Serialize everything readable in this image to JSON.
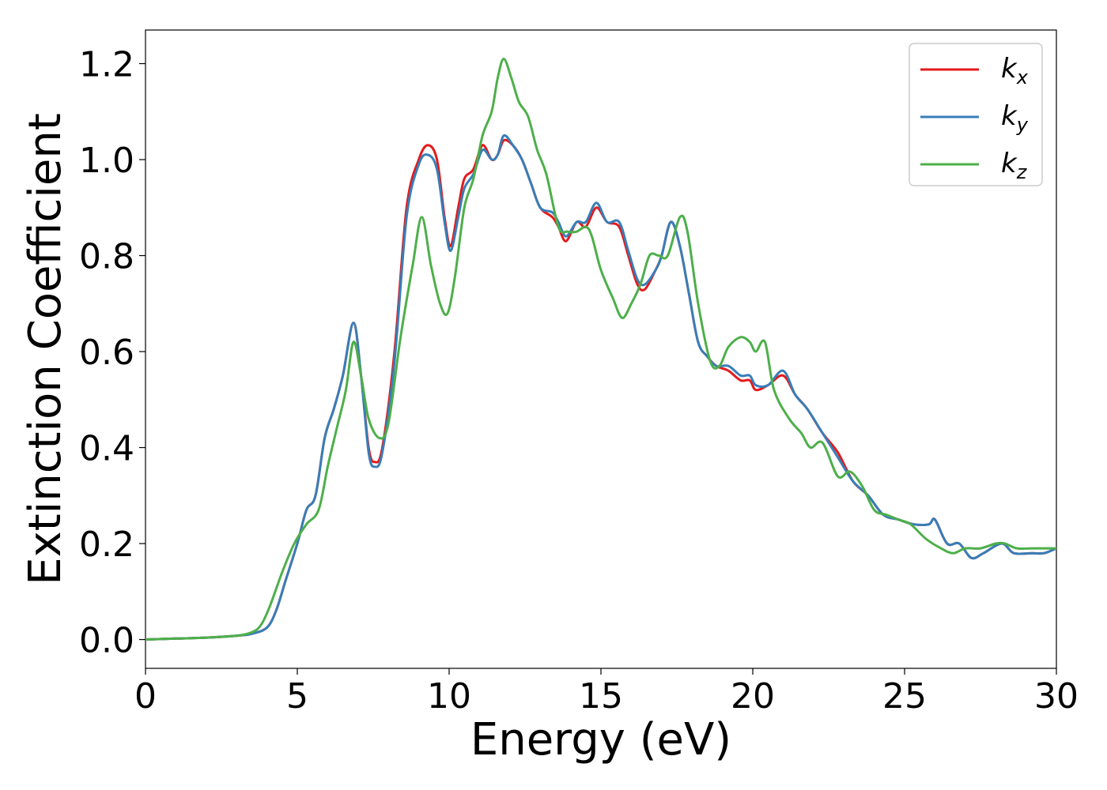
{
  "chart_data": {
    "type": "line",
    "title": "",
    "xlabel": "Energy (eV)",
    "ylabel": "Extinction Coefficient",
    "xlim": [
      0,
      30
    ],
    "ylim": [
      -0.06,
      1.27
    ],
    "xticks": [
      0,
      5,
      10,
      15,
      20,
      25,
      30
    ],
    "xtick_labels": [
      "0",
      "5",
      "10",
      "15",
      "20",
      "25",
      "30"
    ],
    "yticks": [
      0.0,
      0.2,
      0.4,
      0.6,
      0.8,
      1.0,
      1.2
    ],
    "ytick_labels": [
      "0.0",
      "0.2",
      "0.4",
      "0.6",
      "0.8",
      "1.0",
      "1.2"
    ],
    "grid": false,
    "legend_position": "top-right",
    "series": [
      {
        "name": "k_x",
        "legend_base": "k",
        "legend_sub": "x",
        "color": "#e41a1c",
        "points": [
          [
            0,
            0.0
          ],
          [
            1,
            0.002
          ],
          [
            2,
            0.004
          ],
          [
            3,
            0.008
          ],
          [
            3.5,
            0.012
          ],
          [
            4,
            0.025
          ],
          [
            4.3,
            0.06
          ],
          [
            4.6,
            0.12
          ],
          [
            5,
            0.2
          ],
          [
            5.3,
            0.27
          ],
          [
            5.6,
            0.3
          ],
          [
            5.9,
            0.42
          ],
          [
            6.2,
            0.48
          ],
          [
            6.5,
            0.55
          ],
          [
            6.85,
            0.66
          ],
          [
            7.1,
            0.55
          ],
          [
            7.35,
            0.4
          ],
          [
            7.55,
            0.37
          ],
          [
            7.8,
            0.4
          ],
          [
            8.2,
            0.6
          ],
          [
            8.6,
            0.9
          ],
          [
            9.0,
            1.0
          ],
          [
            9.3,
            1.03
          ],
          [
            9.6,
            1.0
          ],
          [
            9.85,
            0.88
          ],
          [
            10.05,
            0.82
          ],
          [
            10.3,
            0.9
          ],
          [
            10.5,
            0.96
          ],
          [
            10.8,
            0.98
          ],
          [
            11.1,
            1.03
          ],
          [
            11.4,
            1.0
          ],
          [
            11.6,
            1.01
          ],
          [
            11.8,
            1.04
          ],
          [
            12.1,
            1.03
          ],
          [
            12.4,
            1.0
          ],
          [
            12.7,
            0.95
          ],
          [
            13.0,
            0.9
          ],
          [
            13.4,
            0.88
          ],
          [
            13.6,
            0.86
          ],
          [
            13.85,
            0.83
          ],
          [
            14.2,
            0.87
          ],
          [
            14.5,
            0.86
          ],
          [
            14.85,
            0.9
          ],
          [
            15.2,
            0.87
          ],
          [
            15.6,
            0.86
          ],
          [
            15.9,
            0.8
          ],
          [
            16.2,
            0.74
          ],
          [
            16.45,
            0.73
          ],
          [
            16.8,
            0.77
          ],
          [
            17.0,
            0.8
          ],
          [
            17.3,
            0.87
          ],
          [
            17.6,
            0.82
          ],
          [
            17.9,
            0.72
          ],
          [
            18.2,
            0.62
          ],
          [
            18.5,
            0.59
          ],
          [
            18.8,
            0.57
          ],
          [
            19.2,
            0.56
          ],
          [
            19.6,
            0.54
          ],
          [
            19.9,
            0.54
          ],
          [
            20.1,
            0.52
          ],
          [
            20.5,
            0.53
          ],
          [
            21.0,
            0.55
          ],
          [
            21.4,
            0.51
          ],
          [
            21.8,
            0.48
          ],
          [
            22.3,
            0.43
          ],
          [
            22.8,
            0.39
          ],
          [
            23.3,
            0.33
          ],
          [
            23.8,
            0.3
          ],
          [
            24.3,
            0.26
          ],
          [
            24.8,
            0.25
          ],
          [
            25.3,
            0.24
          ],
          [
            25.8,
            0.24
          ],
          [
            26.0,
            0.25
          ],
          [
            26.4,
            0.2
          ],
          [
            26.8,
            0.2
          ],
          [
            27.2,
            0.17
          ],
          [
            27.6,
            0.18
          ],
          [
            28.2,
            0.2
          ],
          [
            28.6,
            0.18
          ],
          [
            29.2,
            0.18
          ],
          [
            29.6,
            0.18
          ],
          [
            30,
            0.19
          ]
        ]
      },
      {
        "name": "k_y",
        "legend_base": "k",
        "legend_sub": "y",
        "color": "#377eb8",
        "points": [
          [
            0,
            0.0
          ],
          [
            1,
            0.002
          ],
          [
            2,
            0.004
          ],
          [
            3,
            0.008
          ],
          [
            3.5,
            0.012
          ],
          [
            4,
            0.025
          ],
          [
            4.3,
            0.06
          ],
          [
            4.6,
            0.12
          ],
          [
            5,
            0.2
          ],
          [
            5.3,
            0.27
          ],
          [
            5.6,
            0.3
          ],
          [
            5.9,
            0.42
          ],
          [
            6.2,
            0.48
          ],
          [
            6.5,
            0.55
          ],
          [
            6.85,
            0.66
          ],
          [
            7.1,
            0.55
          ],
          [
            7.35,
            0.39
          ],
          [
            7.55,
            0.36
          ],
          [
            7.8,
            0.39
          ],
          [
            8.2,
            0.58
          ],
          [
            8.6,
            0.88
          ],
          [
            9.0,
            0.99
          ],
          [
            9.3,
            1.01
          ],
          [
            9.6,
            0.98
          ],
          [
            9.85,
            0.87
          ],
          [
            10.05,
            0.81
          ],
          [
            10.3,
            0.88
          ],
          [
            10.5,
            0.94
          ],
          [
            10.8,
            0.97
          ],
          [
            11.1,
            1.02
          ],
          [
            11.4,
            1.0
          ],
          [
            11.6,
            1.01
          ],
          [
            11.8,
            1.05
          ],
          [
            12.1,
            1.03
          ],
          [
            12.4,
            1.0
          ],
          [
            12.7,
            0.95
          ],
          [
            13.0,
            0.9
          ],
          [
            13.4,
            0.89
          ],
          [
            13.6,
            0.87
          ],
          [
            13.85,
            0.84
          ],
          [
            14.2,
            0.87
          ],
          [
            14.5,
            0.87
          ],
          [
            14.85,
            0.91
          ],
          [
            15.2,
            0.87
          ],
          [
            15.6,
            0.87
          ],
          [
            15.9,
            0.81
          ],
          [
            16.2,
            0.75
          ],
          [
            16.45,
            0.74
          ],
          [
            16.8,
            0.77
          ],
          [
            17.0,
            0.8
          ],
          [
            17.3,
            0.87
          ],
          [
            17.6,
            0.82
          ],
          [
            17.9,
            0.72
          ],
          [
            18.2,
            0.62
          ],
          [
            18.5,
            0.59
          ],
          [
            18.8,
            0.57
          ],
          [
            19.2,
            0.57
          ],
          [
            19.6,
            0.55
          ],
          [
            19.9,
            0.55
          ],
          [
            20.1,
            0.53
          ],
          [
            20.5,
            0.53
          ],
          [
            21.0,
            0.56
          ],
          [
            21.4,
            0.51
          ],
          [
            21.8,
            0.48
          ],
          [
            22.3,
            0.43
          ],
          [
            22.8,
            0.38
          ],
          [
            23.3,
            0.33
          ],
          [
            23.8,
            0.3
          ],
          [
            24.3,
            0.26
          ],
          [
            24.8,
            0.25
          ],
          [
            25.3,
            0.24
          ],
          [
            25.8,
            0.24
          ],
          [
            26.0,
            0.25
          ],
          [
            26.4,
            0.2
          ],
          [
            26.8,
            0.2
          ],
          [
            27.2,
            0.17
          ],
          [
            27.6,
            0.18
          ],
          [
            28.2,
            0.2
          ],
          [
            28.6,
            0.18
          ],
          [
            29.2,
            0.18
          ],
          [
            29.6,
            0.18
          ],
          [
            30,
            0.19
          ]
        ]
      },
      {
        "name": "k_z",
        "legend_base": "k",
        "legend_sub": "z",
        "color": "#4daf4a",
        "points": [
          [
            0,
            0.0
          ],
          [
            1,
            0.002
          ],
          [
            2,
            0.004
          ],
          [
            3,
            0.008
          ],
          [
            3.5,
            0.015
          ],
          [
            3.8,
            0.03
          ],
          [
            4.1,
            0.07
          ],
          [
            4.5,
            0.14
          ],
          [
            4.9,
            0.2
          ],
          [
            5.3,
            0.24
          ],
          [
            5.7,
            0.27
          ],
          [
            6.0,
            0.36
          ],
          [
            6.3,
            0.44
          ],
          [
            6.6,
            0.52
          ],
          [
            6.85,
            0.62
          ],
          [
            7.1,
            0.55
          ],
          [
            7.35,
            0.46
          ],
          [
            7.7,
            0.42
          ],
          [
            8.0,
            0.45
          ],
          [
            8.4,
            0.63
          ],
          [
            8.8,
            0.78
          ],
          [
            9.1,
            0.88
          ],
          [
            9.4,
            0.78
          ],
          [
            9.7,
            0.7
          ],
          [
            9.95,
            0.68
          ],
          [
            10.2,
            0.76
          ],
          [
            10.5,
            0.9
          ],
          [
            10.8,
            0.96
          ],
          [
            11.1,
            1.05
          ],
          [
            11.4,
            1.1
          ],
          [
            11.6,
            1.17
          ],
          [
            11.8,
            1.21
          ],
          [
            12.05,
            1.17
          ],
          [
            12.3,
            1.12
          ],
          [
            12.6,
            1.09
          ],
          [
            12.9,
            1.02
          ],
          [
            13.2,
            0.97
          ],
          [
            13.6,
            0.86
          ],
          [
            13.9,
            0.85
          ],
          [
            14.2,
            0.85
          ],
          [
            14.5,
            0.86
          ],
          [
            14.7,
            0.84
          ],
          [
            15.0,
            0.77
          ],
          [
            15.4,
            0.71
          ],
          [
            15.7,
            0.67
          ],
          [
            16.0,
            0.7
          ],
          [
            16.3,
            0.74
          ],
          [
            16.6,
            0.8
          ],
          [
            16.9,
            0.8
          ],
          [
            17.2,
            0.8
          ],
          [
            17.6,
            0.88
          ],
          [
            17.85,
            0.85
          ],
          [
            18.2,
            0.7
          ],
          [
            18.6,
            0.58
          ],
          [
            18.9,
            0.57
          ],
          [
            19.2,
            0.61
          ],
          [
            19.6,
            0.63
          ],
          [
            19.9,
            0.62
          ],
          [
            20.1,
            0.6
          ],
          [
            20.4,
            0.62
          ],
          [
            20.7,
            0.52
          ],
          [
            21.2,
            0.46
          ],
          [
            21.6,
            0.43
          ],
          [
            21.9,
            0.4
          ],
          [
            22.3,
            0.41
          ],
          [
            22.8,
            0.34
          ],
          [
            23.2,
            0.35
          ],
          [
            23.6,
            0.32
          ],
          [
            24.0,
            0.27
          ],
          [
            24.4,
            0.26
          ],
          [
            24.8,
            0.25
          ],
          [
            25.2,
            0.24
          ],
          [
            25.7,
            0.21
          ],
          [
            26.2,
            0.19
          ],
          [
            26.6,
            0.18
          ],
          [
            27.0,
            0.19
          ],
          [
            27.5,
            0.19
          ],
          [
            28.0,
            0.2
          ],
          [
            28.3,
            0.2
          ],
          [
            28.7,
            0.19
          ],
          [
            29.2,
            0.19
          ],
          [
            29.6,
            0.19
          ],
          [
            30,
            0.19
          ]
        ]
      }
    ]
  }
}
